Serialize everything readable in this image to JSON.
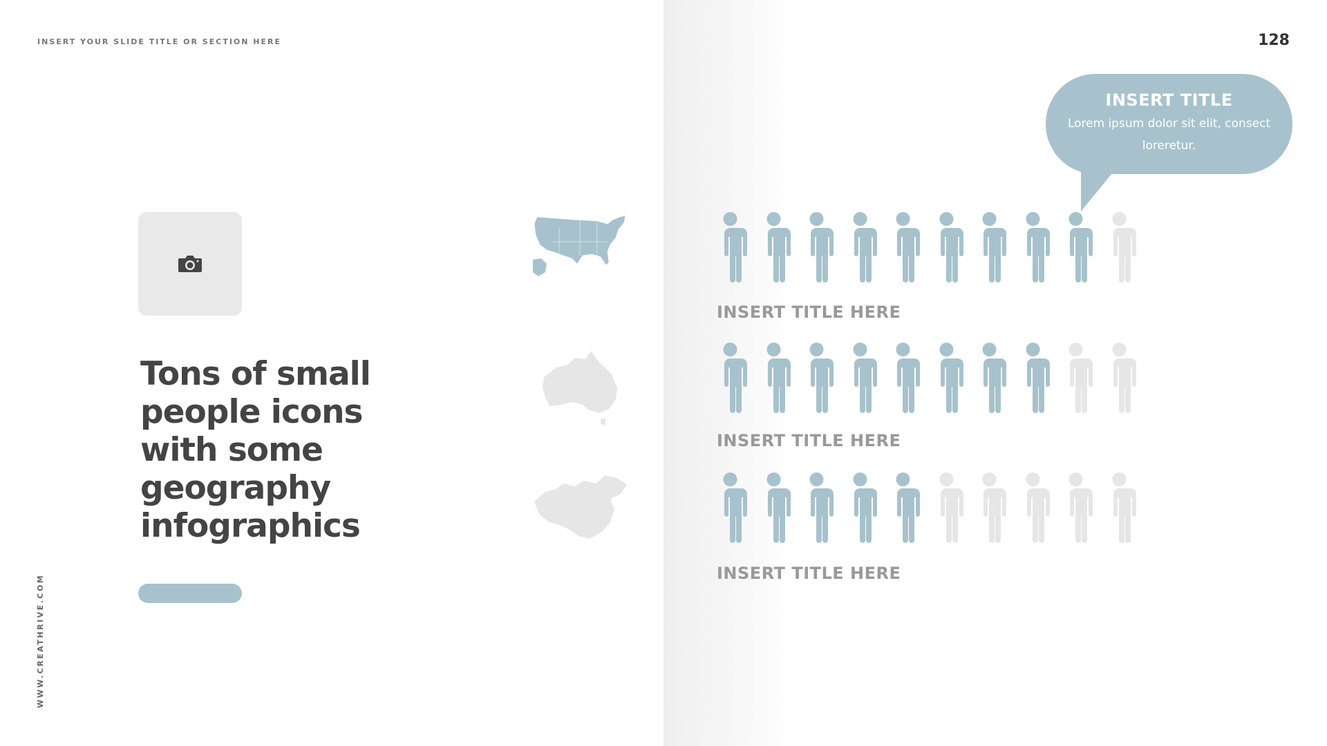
{
  "header": {
    "slide_title": "INSERT YOUR SLIDE TITLE OR SECTION HERE",
    "page_number": "128"
  },
  "left": {
    "headline": "Tons of small people icons with some geography infographics",
    "photo_icon": "camera-icon",
    "vertical_text": "WWW.CREATHRIVE.COM"
  },
  "colors": {
    "accent": "#a7c2cc",
    "inactive": "#e6e6e6",
    "text": "#444444",
    "label": "#999999"
  },
  "callout": {
    "title": "INSERT TITLE",
    "body": "Lorem ipsum dolor sit elit, consect loreretur."
  },
  "rows": [
    {
      "map": "usa",
      "filled": 9,
      "total": 10,
      "label": "INSERT TITLE HERE"
    },
    {
      "map": "australia",
      "filled": 8,
      "total": 10,
      "label": "INSERT TITLE HERE"
    },
    {
      "map": "china",
      "filled": 5,
      "total": 10,
      "label": "INSERT TITLE HERE"
    }
  ]
}
